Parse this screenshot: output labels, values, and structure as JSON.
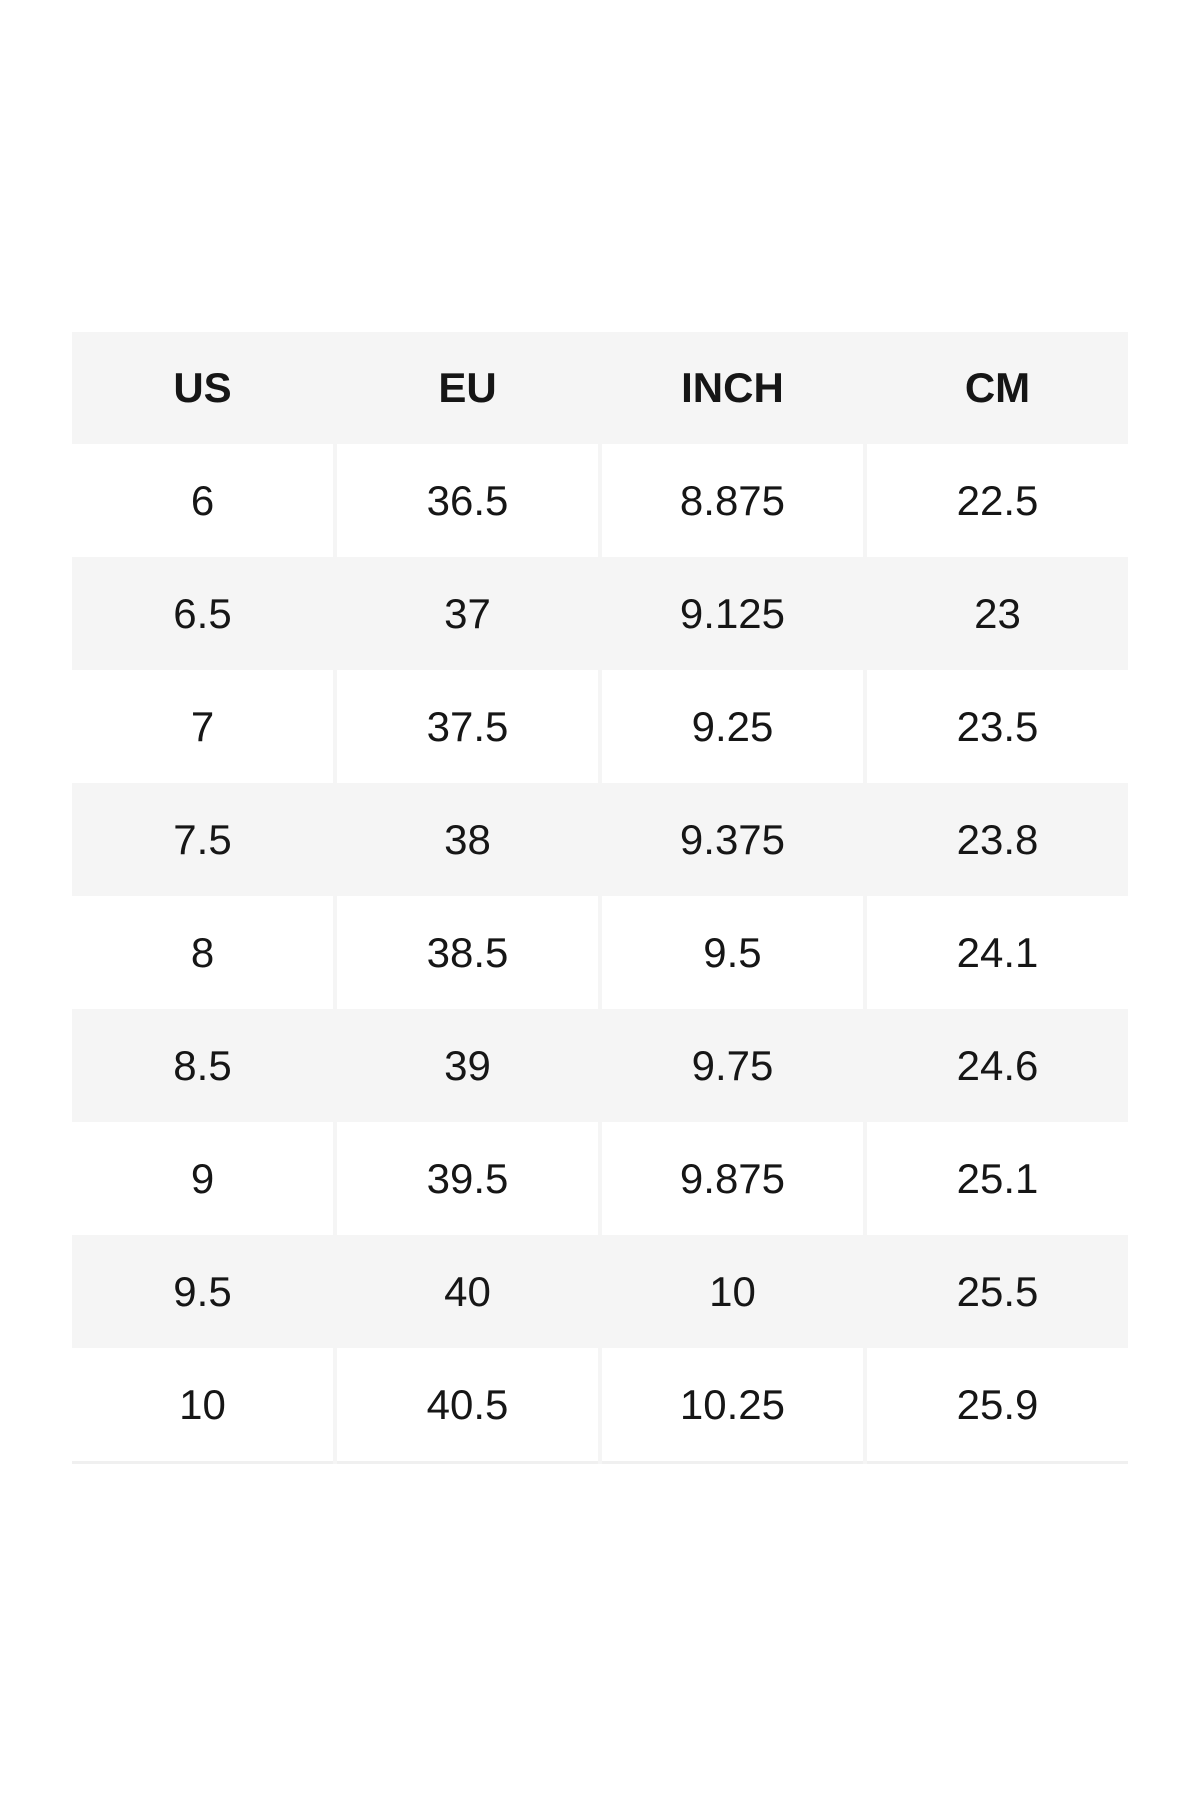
{
  "page": {
    "background_color": "#ffffff",
    "stripe_color": "#f5f5f5",
    "text_color": "#161616",
    "bottom_edge_color": "#f0f0f0"
  },
  "table": {
    "columns": [
      "US",
      "EU",
      "INCH",
      "CM"
    ],
    "rows": [
      [
        "6",
        "36.5",
        "8.875",
        "22.5"
      ],
      [
        "6.5",
        "37",
        "9.125",
        "23"
      ],
      [
        "7",
        "37.5",
        "9.25",
        "23.5"
      ],
      [
        "7.5",
        "38",
        "9.375",
        "23.8"
      ],
      [
        "8",
        "38.5",
        "9.5",
        "24.1"
      ],
      [
        "8.5",
        "39",
        "9.75",
        "24.6"
      ],
      [
        "9",
        "39.5",
        "9.875",
        "25.1"
      ],
      [
        "9.5",
        "40",
        "10",
        "25.5"
      ],
      [
        "10",
        "40.5",
        "10.25",
        "25.9"
      ]
    ]
  },
  "chart_data": {
    "type": "table",
    "title": "",
    "columns": [
      "US",
      "EU",
      "INCH",
      "CM"
    ],
    "rows": [
      [
        6,
        36.5,
        8.875,
        22.5
      ],
      [
        6.5,
        37,
        9.125,
        23
      ],
      [
        7,
        37.5,
        9.25,
        23.5
      ],
      [
        7.5,
        38,
        9.375,
        23.8
      ],
      [
        8,
        38.5,
        9.5,
        24.1
      ],
      [
        8.5,
        39,
        9.75,
        24.6
      ],
      [
        9,
        39.5,
        9.875,
        25.1
      ],
      [
        9.5,
        40,
        10,
        25.5
      ],
      [
        10,
        40.5,
        10.25,
        25.9
      ]
    ],
    "layout_hints": {
      "header_background": "#f5f5f5",
      "zebra_striping": "even data rows gray, odd data rows white",
      "alignment": "center"
    }
  }
}
